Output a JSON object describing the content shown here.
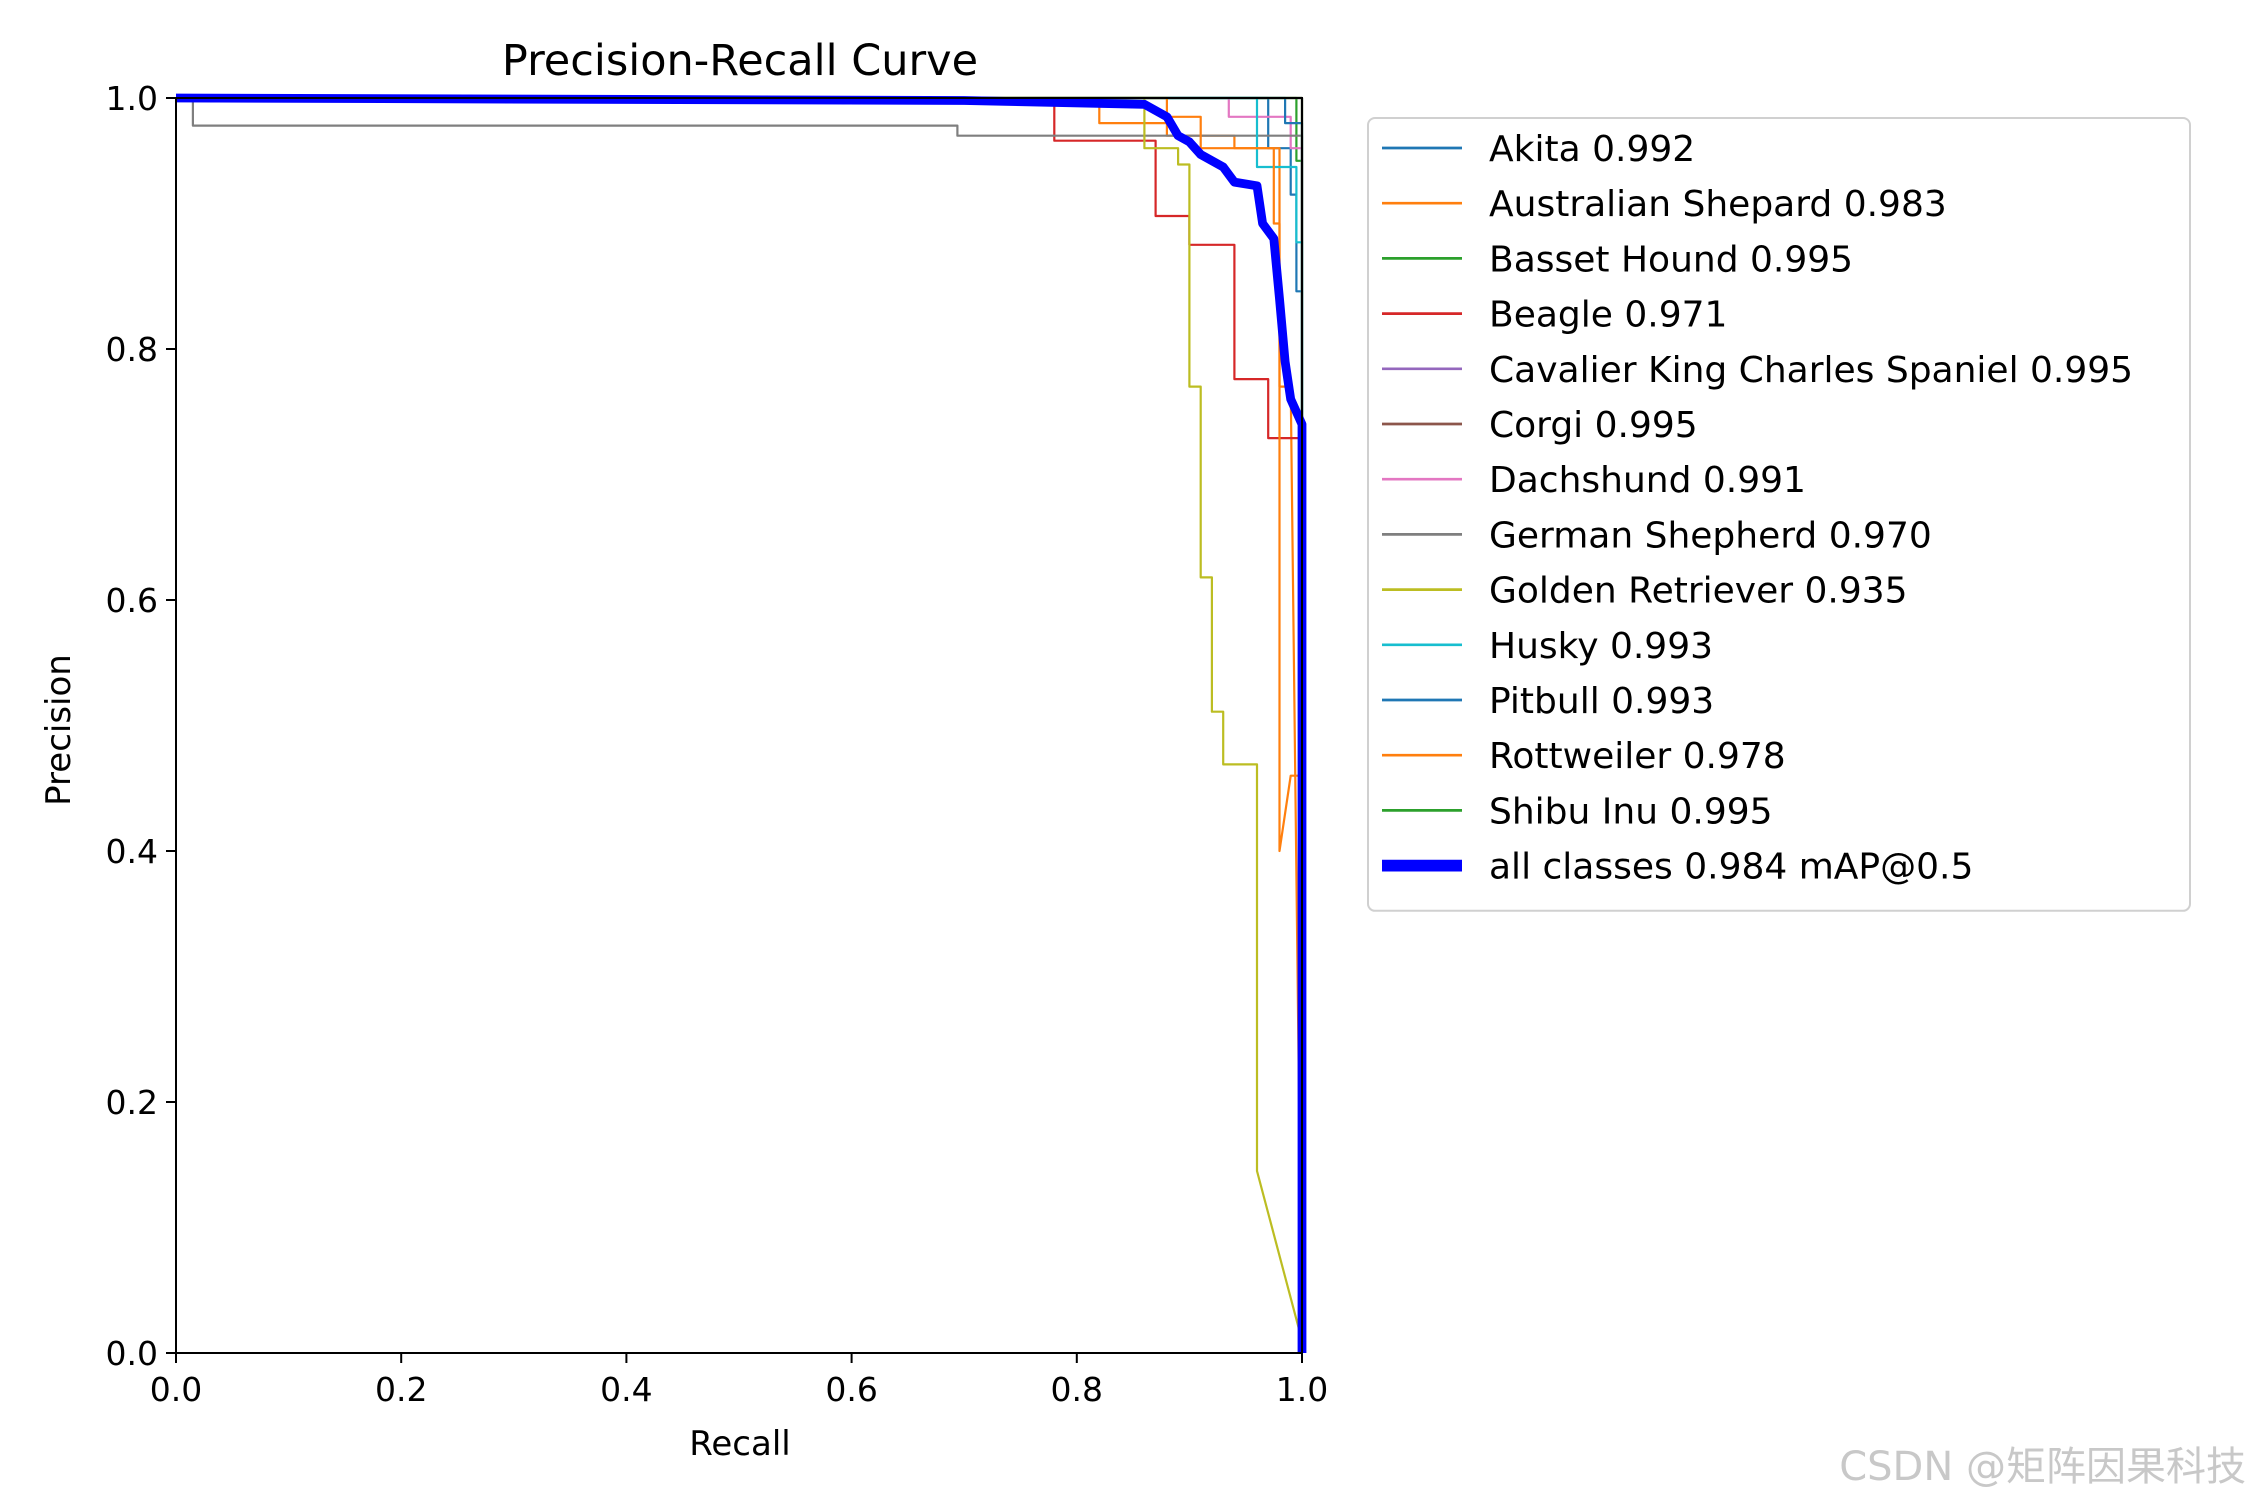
{
  "watermark": "CSDN @矩阵因果科技",
  "chart_data": {
    "type": "line",
    "title": "Precision-Recall Curve",
    "xlabel": "Recall",
    "ylabel": "Precision",
    "xlim": [
      0,
      1
    ],
    "ylim": [
      0,
      1
    ],
    "xticks": [
      "0.0",
      "0.2",
      "0.4",
      "0.6",
      "0.8",
      "1.0"
    ],
    "yticks": [
      "0.0",
      "0.2",
      "0.4",
      "0.6",
      "0.8",
      "1.0"
    ],
    "grid": false,
    "legend_position": "outside-right",
    "series": [
      {
        "name": "Akita 0.992",
        "color": "#1f77b4",
        "width": 1,
        "points": [
          [
            0,
            1
          ],
          [
            0.97,
            1
          ],
          [
            0.97,
            0.96
          ],
          [
            0.99,
            0.96
          ],
          [
            0.99,
            0.923
          ],
          [
            0.995,
            0.923
          ],
          [
            0.995,
            0.846
          ],
          [
            1.0,
            0.846
          ],
          [
            1.0,
            0
          ]
        ]
      },
      {
        "name": "Australian Shepard 0.983",
        "color": "#ff7f0e",
        "width": 1,
        "points": [
          [
            0,
            1
          ],
          [
            0.82,
            1
          ],
          [
            0.82,
            0.98
          ],
          [
            0.88,
            0.98
          ],
          [
            0.88,
            0.97
          ],
          [
            0.94,
            0.97
          ],
          [
            0.94,
            0.96
          ],
          [
            0.98,
            0.96
          ],
          [
            0.98,
            0.77
          ],
          [
            0.99,
            0.77
          ],
          [
            1.0,
            0
          ]
        ]
      },
      {
        "name": "Basset Hound 0.995",
        "color": "#2ca02c",
        "width": 1,
        "points": [
          [
            0,
            1
          ],
          [
            0.995,
            1
          ],
          [
            0.995,
            0.95
          ],
          [
            1.0,
            0.95
          ],
          [
            1.0,
            0
          ]
        ]
      },
      {
        "name": "Beagle 0.971",
        "color": "#d62728",
        "width": 1,
        "points": [
          [
            0,
            1
          ],
          [
            0.78,
            1
          ],
          [
            0.78,
            0.966
          ],
          [
            0.87,
            0.966
          ],
          [
            0.87,
            0.906
          ],
          [
            0.9,
            0.906
          ],
          [
            0.9,
            0.883
          ],
          [
            0.94,
            0.883
          ],
          [
            0.94,
            0.776
          ],
          [
            0.97,
            0.776
          ],
          [
            0.97,
            0.729
          ],
          [
            1.0,
            0.729
          ],
          [
            1.0,
            0
          ]
        ]
      },
      {
        "name": "Cavalier King Charles Spaniel 0.995",
        "color": "#9467bd",
        "width": 1,
        "points": [
          [
            0,
            1
          ],
          [
            1.0,
            1
          ],
          [
            1.0,
            0
          ]
        ]
      },
      {
        "name": "Corgi 0.995",
        "color": "#8c564b",
        "width": 1,
        "points": [
          [
            0,
            1
          ],
          [
            1.0,
            1
          ],
          [
            1.0,
            0
          ]
        ]
      },
      {
        "name": "Dachshund 0.991",
        "color": "#e377c2",
        "width": 1,
        "points": [
          [
            0,
            1
          ],
          [
            0.935,
            1
          ],
          [
            0.935,
            0.985
          ],
          [
            0.99,
            0.985
          ],
          [
            0.99,
            0.96
          ],
          [
            1.0,
            0.96
          ],
          [
            1.0,
            0
          ]
        ]
      },
      {
        "name": "German Shepherd 0.970",
        "color": "#7f7f7f",
        "width": 1,
        "points": [
          [
            0,
            1
          ],
          [
            0.015,
            1
          ],
          [
            0.015,
            0.978
          ],
          [
            0.694,
            0.978
          ],
          [
            0.694,
            0.97
          ],
          [
            1.0,
            0.97
          ],
          [
            1.0,
            0
          ]
        ]
      },
      {
        "name": "Golden Retriever 0.935",
        "color": "#bcbd22",
        "width": 1,
        "points": [
          [
            0,
            1
          ],
          [
            0.86,
            1
          ],
          [
            0.86,
            0.96
          ],
          [
            0.89,
            0.96
          ],
          [
            0.89,
            0.947
          ],
          [
            0.9,
            0.947
          ],
          [
            0.9,
            0.77
          ],
          [
            0.91,
            0.77
          ],
          [
            0.91,
            0.618
          ],
          [
            0.92,
            0.618
          ],
          [
            0.92,
            0.511
          ],
          [
            0.93,
            0.511
          ],
          [
            0.93,
            0.469
          ],
          [
            0.96,
            0.469
          ],
          [
            0.96,
            0.145
          ],
          [
            1.0,
            0.01
          ]
        ]
      },
      {
        "name": "Husky 0.993",
        "color": "#17becf",
        "width": 1,
        "points": [
          [
            0,
            1
          ],
          [
            0.96,
            1
          ],
          [
            0.96,
            0.945
          ],
          [
            0.995,
            0.945
          ],
          [
            0.995,
            0.885
          ],
          [
            1.0,
            0.885
          ],
          [
            1.0,
            0
          ]
        ]
      },
      {
        "name": "Pitbull 0.993",
        "color": "#1f77b4",
        "width": 1,
        "points": [
          [
            0,
            1
          ],
          [
            0.985,
            1
          ],
          [
            0.985,
            0.98
          ],
          [
            1.0,
            0.98
          ],
          [
            1.0,
            0
          ]
        ]
      },
      {
        "name": "Rottweiler 0.978",
        "color": "#ff7f0e",
        "width": 1,
        "points": [
          [
            0,
            1
          ],
          [
            0.88,
            1
          ],
          [
            0.88,
            0.985
          ],
          [
            0.91,
            0.985
          ],
          [
            0.91,
            0.96
          ],
          [
            0.975,
            0.96
          ],
          [
            0.975,
            0.9
          ],
          [
            0.98,
            0.9
          ],
          [
            0.98,
            0.4
          ],
          [
            0.99,
            0.46
          ],
          [
            1.0,
            0.46
          ],
          [
            1.0,
            0
          ]
        ]
      },
      {
        "name": "Shibu Inu 0.995",
        "color": "#2ca02c",
        "width": 1,
        "points": [
          [
            0,
            1
          ],
          [
            1.0,
            1
          ],
          [
            1.0,
            0
          ]
        ]
      },
      {
        "name": "all classes 0.984 mAP@0.5",
        "color": "#0000ff",
        "width": 4,
        "points": [
          [
            0,
            1
          ],
          [
            0.7,
            0.998
          ],
          [
            0.86,
            0.995
          ],
          [
            0.88,
            0.985
          ],
          [
            0.89,
            0.97
          ],
          [
            0.9,
            0.965
          ],
          [
            0.91,
            0.955
          ],
          [
            0.93,
            0.945
          ],
          [
            0.94,
            0.933
          ],
          [
            0.96,
            0.93
          ],
          [
            0.965,
            0.9
          ],
          [
            0.975,
            0.888
          ],
          [
            0.98,
            0.84
          ],
          [
            0.985,
            0.79
          ],
          [
            0.99,
            0.76
          ],
          [
            1.0,
            0.74
          ],
          [
            1.0,
            0
          ]
        ]
      }
    ]
  }
}
